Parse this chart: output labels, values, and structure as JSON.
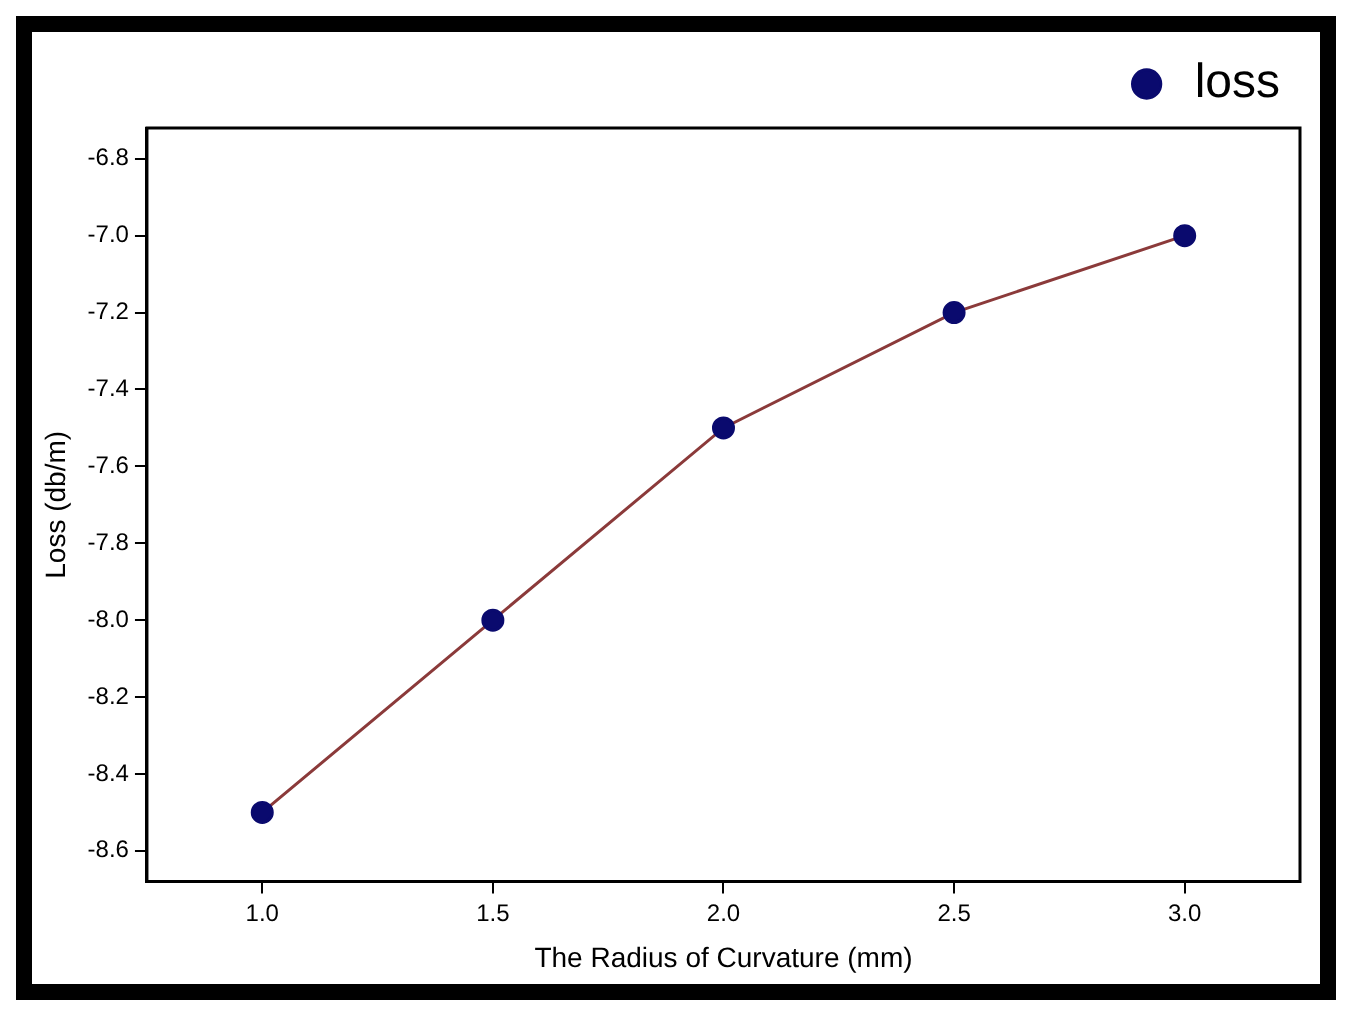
{
  "chart_data": {
    "type": "line",
    "xlabel": "The Radius of Curvature (mm)",
    "ylabel": "Loss (db/m)",
    "x": [
      1.0,
      1.5,
      2.0,
      2.5,
      3.0
    ],
    "series": [
      {
        "name": "loss",
        "color": "#8b3a3a",
        "values": [
          -8.5,
          -8.0,
          -7.5,
          -7.2,
          -7.0
        ]
      }
    ],
    "marker": "circle",
    "legend": "top right",
    "grid": false,
    "xlim": [
      0.75,
      3.25
    ],
    "xticks": [
      {
        "value": 1.0,
        "label": "1.0"
      },
      {
        "value": 1.5,
        "label": "1.5"
      },
      {
        "value": 2.0,
        "label": "2.0"
      },
      {
        "value": 2.5,
        "label": "2.5"
      },
      {
        "value": 3.0,
        "label": "3.0"
      }
    ],
    "ylim": [
      -8.68,
      -6.72
    ],
    "yticks": [
      {
        "value": -8.6,
        "label": "-8.6"
      },
      {
        "value": -8.4,
        "label": "-8.4"
      },
      {
        "value": -8.2,
        "label": "-8.2"
      },
      {
        "value": -8.0,
        "label": "-8.0"
      },
      {
        "value": -7.8,
        "label": "-7.8"
      },
      {
        "value": -7.6,
        "label": "-7.6"
      },
      {
        "value": -7.4,
        "label": "-7.4"
      },
      {
        "value": -7.2,
        "label": "-7.2"
      },
      {
        "value": -7.0,
        "label": "-7.0"
      },
      {
        "value": -6.8,
        "label": "-6.8"
      }
    ]
  }
}
